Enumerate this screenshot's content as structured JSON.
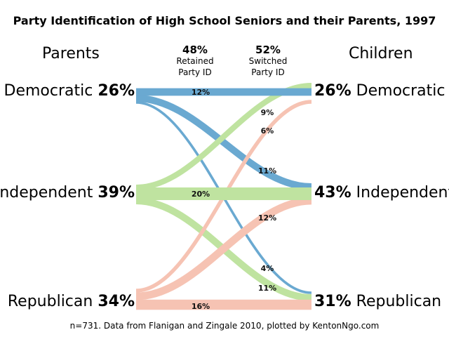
{
  "title": "Party Identification of High School Seniors and their Parents, 1997",
  "parents_label": "Parents",
  "children_label": "Children",
  "retained": {
    "pct": "48%",
    "line1": "Retained",
    "line2": "Party ID"
  },
  "switched": {
    "pct": "52%",
    "line1": "Switched",
    "line2": "Party ID"
  },
  "parents": [
    {
      "name": "Democratic",
      "pct": "26%"
    },
    {
      "name": "Independent",
      "pct": "39%"
    },
    {
      "name": "Republican",
      "pct": "34%"
    }
  ],
  "children": [
    {
      "name": "Democratic",
      "pct": "26%"
    },
    {
      "name": "Independent",
      "pct": "43%"
    },
    {
      "name": "Republican",
      "pct": "31%"
    }
  ],
  "colors": {
    "democratic": "#6aa9d1",
    "independent": "#bfe3a0",
    "republican": "#f6c3b3"
  },
  "flows": [
    {
      "from": "Democratic",
      "to": "Democratic",
      "value": 12,
      "label": "12%"
    },
    {
      "from": "Democratic",
      "to": "Independent",
      "value": 11,
      "label": "11%"
    },
    {
      "from": "Democratic",
      "to": "Republican",
      "value": 4,
      "label": "4%"
    },
    {
      "from": "Independent",
      "to": "Democratic",
      "value": 9,
      "label": "9%"
    },
    {
      "from": "Independent",
      "to": "Independent",
      "value": 20,
      "label": "20%"
    },
    {
      "from": "Independent",
      "to": "Republican",
      "value": 11,
      "label": "11%"
    },
    {
      "from": "Republican",
      "to": "Democratic",
      "value": 6,
      "label": "6%"
    },
    {
      "from": "Republican",
      "to": "Independent",
      "value": 12,
      "label": "12%"
    },
    {
      "from": "Republican",
      "to": "Republican",
      "value": 16,
      "label": "16%"
    }
  ],
  "footer": "n=731. Data from Flanigan and Zingale 2010, plotted by KentonNgo.com"
}
